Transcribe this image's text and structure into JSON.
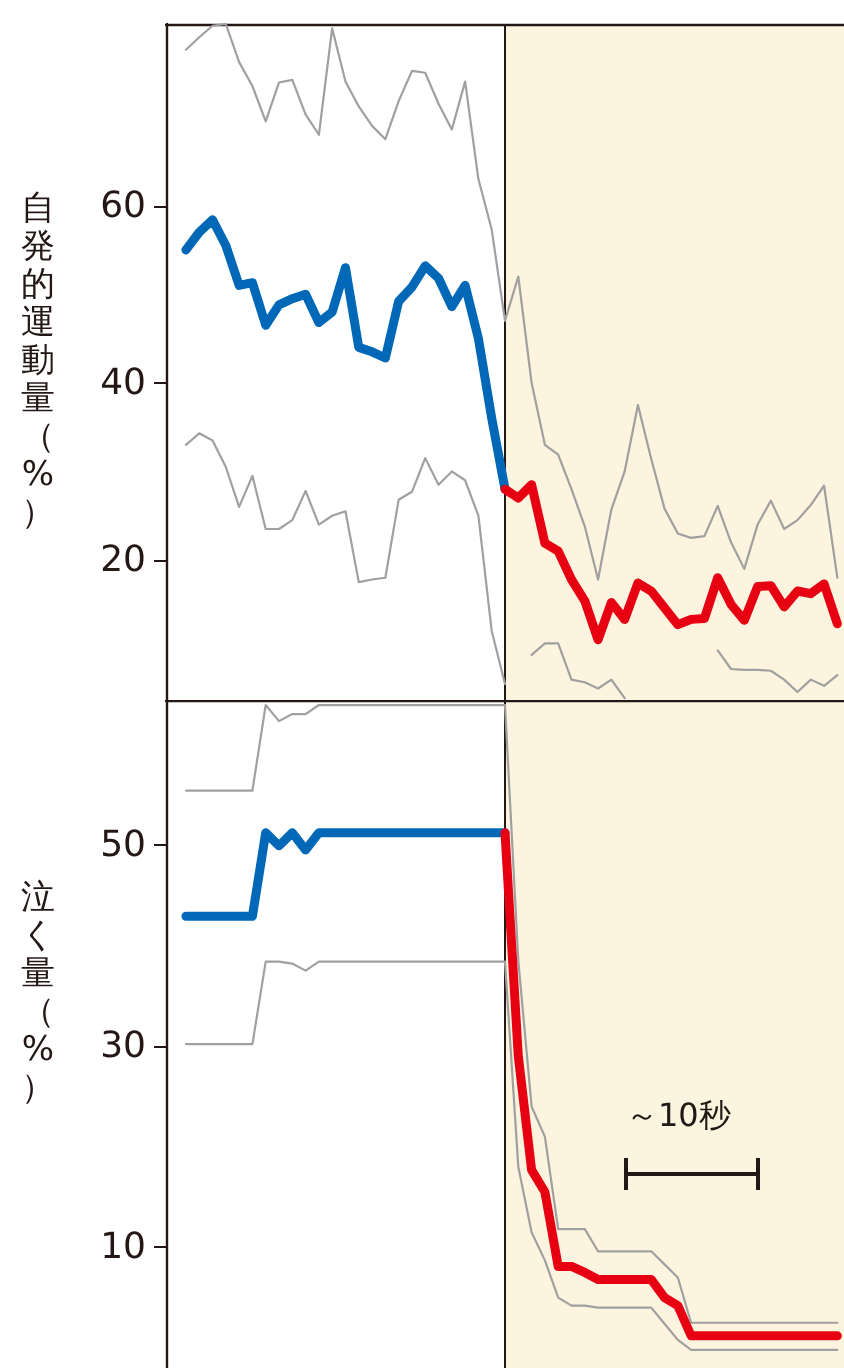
{
  "chart_data": [
    {
      "type": "line",
      "ylabel": "自発的運動量（%）",
      "categories": [
        null,
        null,
        null,
        null,
        null,
        null,
        null,
        null,
        null,
        null,
        null,
        null,
        null,
        null,
        null,
        null,
        null,
        null,
        null,
        null,
        null,
        null,
        null,
        null,
        null,
        null,
        null,
        null,
        null,
        null,
        null,
        null,
        null,
        null,
        null,
        null,
        null,
        null,
        null,
        null,
        null,
        null,
        null,
        null,
        null,
        null,
        null,
        null,
        null,
        null,
        null
      ],
      "ylim": [
        4.2,
        80.5
      ],
      "yticks": [
        20,
        40,
        60
      ],
      "tick_labels": "y",
      "line_style": "solid",
      "series": [
        {
          "color": "#a0a0a0",
          "values": [
            null,
            77.6,
            79,
            80.3,
            80.5,
            76.2,
            73.5,
            69.5,
            73.9,
            74.2,
            70.3,
            68,
            80,
            74,
            71.2,
            69,
            67.5,
            71.8,
            75.2,
            75,
            71.5,
            68.6,
            74,
            63,
            57.3,
            47,
            52,
            40,
            33,
            31.9,
            28,
            23.8,
            17.8,
            25.7,
            30,
            37.5,
            31.4,
            25.8,
            23,
            22.5,
            22.7,
            26.1,
            22,
            19,
            24,
            26.7,
            23.5,
            24.5,
            26.2,
            28.4,
            18
          ]
        },
        {
          "color": "#a0a0a0",
          "values": [
            null,
            33,
            34.3,
            33.5,
            30.5,
            26,
            29.5,
            23.5,
            23.5,
            24.5,
            27.8,
            24,
            25,
            25.5,
            17.5,
            17.8,
            18,
            26.8,
            27.7,
            31.5,
            28.5,
            30,
            29,
            25,
            12,
            6,
            null,
            9.3,
            10.6,
            10.6,
            6.5,
            6.2,
            5.5,
            6.5,
            4.4,
            null,
            null,
            null,
            null,
            null,
            null,
            9.8,
            7.7,
            7.6,
            7.6,
            7.5,
            6.5,
            5.1,
            6.5,
            5.8,
            7
          ]
        },
        {
          "color": "#0068b7",
          "values": [
            null,
            55,
            57,
            58.4,
            55.5,
            51,
            51.3,
            46.5,
            48.8,
            49.5,
            50,
            46.8,
            48,
            53,
            44,
            43.5,
            42.8,
            49.2,
            50.8,
            53.2,
            51.8,
            48.6,
            51,
            45,
            36,
            28,
            null,
            null,
            null,
            null,
            null,
            null,
            null,
            null,
            null,
            null,
            null,
            null,
            null,
            null,
            null,
            null,
            null,
            null,
            null,
            null,
            null,
            null,
            null,
            null,
            null
          ]
        },
        {
          "color": "#e60012",
          "values": [
            null,
            null,
            null,
            null,
            null,
            null,
            null,
            null,
            null,
            null,
            null,
            null,
            null,
            null,
            null,
            null,
            null,
            null,
            null,
            null,
            null,
            null,
            null,
            null,
            null,
            28,
            27,
            28.5,
            21.9,
            21,
            17.8,
            15.4,
            11,
            15.2,
            13.3,
            17.4,
            16.5,
            14.6,
            12.7,
            13.3,
            13.4,
            18,
            15,
            13.2,
            17,
            17.1,
            14.7,
            16.5,
            16.2,
            17.3,
            12.8
          ]
        }
      ]
    },
    {
      "type": "line",
      "ylabel": "泣く量（%）",
      "categories": [
        null,
        null,
        null,
        null,
        null,
        null,
        null,
        null,
        null,
        null,
        null,
        null,
        null,
        null,
        null,
        null,
        null,
        null,
        null,
        null,
        null,
        null,
        null,
        null,
        null,
        null,
        null,
        null,
        null,
        null,
        null,
        null,
        null,
        null,
        null,
        null,
        null,
        null,
        null,
        null,
        null,
        null,
        null,
        null,
        null,
        null,
        null,
        null,
        null,
        null,
        null
      ],
      "ylim": [
        -2,
        64.4
      ],
      "yticks": [
        10,
        30,
        50
      ],
      "tick_labels": "y",
      "line_style": "solid",
      "annotations": [
        "～10秒"
      ],
      "series": [
        {
          "color": "#a0a0a0",
          "values": [
            null,
            55.4,
            55.4,
            55.4,
            55.4,
            55.4,
            55.4,
            63.9,
            62.3,
            63,
            63,
            63.9,
            63.9,
            63.9,
            63.9,
            63.9,
            63.9,
            63.9,
            63.9,
            63.9,
            63.9,
            63.9,
            63.9,
            63.9,
            63.9,
            63.9,
            38.5,
            24,
            21,
            11.8,
            11.8,
            11.8,
            9.6,
            9.6,
            9.6,
            9.6,
            9.6,
            8.3,
            7,
            2.5,
            2.5,
            2.5,
            2.5,
            2.5,
            2.5,
            2.5,
            2.5,
            2.5,
            2.5,
            2.5,
            2.5
          ]
        },
        {
          "color": "#a0a0a0",
          "values": [
            null,
            30.2,
            30.2,
            30.2,
            30.2,
            30.2,
            30.2,
            38.4,
            38.4,
            38.2,
            37.5,
            38.4,
            38.4,
            38.4,
            38.4,
            38.4,
            38.4,
            38.4,
            38.4,
            38.4,
            38.4,
            38.4,
            38.4,
            38.4,
            38.4,
            38.4,
            18,
            11.5,
            8.7,
            5,
            4.2,
            4.2,
            4,
            4,
            4,
            4,
            4,
            2.4,
            0.8,
            -0.2,
            -0.2,
            -0.2,
            -0.2,
            -0.2,
            -0.2,
            -0.2,
            -0.2,
            -0.2,
            -0.2,
            -0.2,
            -0.2
          ]
        },
        {
          "color": "#0068b7",
          "values": [
            null,
            42.9,
            42.9,
            42.9,
            42.9,
            42.9,
            42.9,
            51.2,
            49.9,
            51.2,
            49.5,
            51.2,
            51.2,
            51.2,
            51.2,
            51.2,
            51.2,
            51.2,
            51.2,
            51.2,
            51.2,
            51.2,
            51.2,
            51.2,
            51.2,
            51.2,
            null,
            null,
            null,
            null,
            null,
            null,
            null,
            null,
            null,
            null,
            null,
            null,
            null,
            null,
            null,
            null,
            null,
            null,
            null,
            null,
            null,
            null,
            null,
            null,
            null
          ]
        },
        {
          "color": "#e60012",
          "values": [
            null,
            null,
            null,
            null,
            null,
            null,
            null,
            null,
            null,
            null,
            null,
            null,
            null,
            null,
            null,
            null,
            null,
            null,
            null,
            null,
            null,
            null,
            null,
            null,
            null,
            51.2,
            29,
            17.7,
            15.5,
            8.1,
            8.1,
            7.5,
            6.8,
            6.8,
            6.8,
            6.8,
            6.8,
            5,
            4.2,
            1.2,
            1.2,
            1.2,
            1.2,
            1.2,
            1.2,
            1.2,
            1.2,
            1.2,
            1.2,
            1.2,
            1.2
          ]
        }
      ]
    }
  ]
}
